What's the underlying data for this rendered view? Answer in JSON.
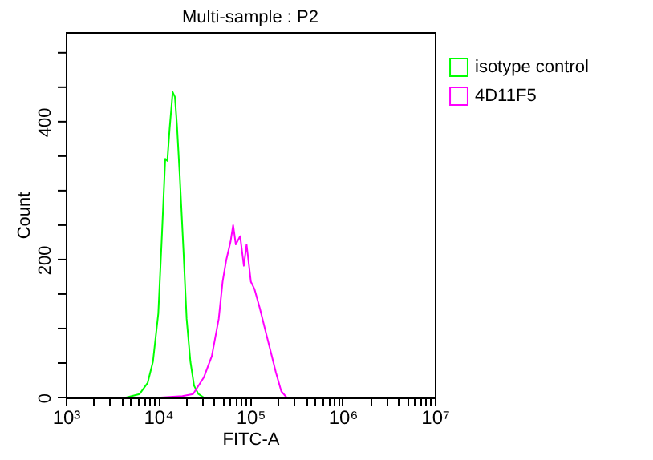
{
  "chart_data": {
    "type": "line",
    "title": "Multi-sample : P2",
    "xlabel": "FITC-A",
    "ylabel": "Count",
    "log": "x",
    "legend": "top right",
    "grid": false,
    "xlim": [
      1000,
      10000000
    ],
    "xticks": [
      {
        "value": 1000,
        "label": "10³"
      },
      {
        "value": 2000,
        "label": null
      },
      {
        "value": 3000,
        "label": null
      },
      {
        "value": 4000,
        "label": null
      },
      {
        "value": 5000,
        "label": null
      },
      {
        "value": 6000,
        "label": null
      },
      {
        "value": 7000,
        "label": null
      },
      {
        "value": 8000,
        "label": null
      },
      {
        "value": 9000,
        "label": null
      },
      {
        "value": 10000,
        "label": "10⁴"
      },
      {
        "value": 20000,
        "label": null
      },
      {
        "value": 30000,
        "label": null
      },
      {
        "value": 40000,
        "label": null
      },
      {
        "value": 50000,
        "label": null
      },
      {
        "value": 60000,
        "label": null
      },
      {
        "value": 70000,
        "label": null
      },
      {
        "value": 80000,
        "label": null
      },
      {
        "value": 90000,
        "label": null
      },
      {
        "value": 100000,
        "label": "10⁵"
      },
      {
        "value": 200000,
        "label": null
      },
      {
        "value": 300000,
        "label": null
      },
      {
        "value": 400000,
        "label": null
      },
      {
        "value": 500000,
        "label": null
      },
      {
        "value": 600000,
        "label": null
      },
      {
        "value": 700000,
        "label": null
      },
      {
        "value": 800000,
        "label": null
      },
      {
        "value": 900000,
        "label": null
      },
      {
        "value": 1000000,
        "label": "10⁶"
      },
      {
        "value": 2000000,
        "label": null
      },
      {
        "value": 3000000,
        "label": null
      },
      {
        "value": 4000000,
        "label": null
      },
      {
        "value": 5000000,
        "label": null
      },
      {
        "value": 6000000,
        "label": null
      },
      {
        "value": 7000000,
        "label": null
      },
      {
        "value": 8000000,
        "label": null
      },
      {
        "value": 9000000,
        "label": null
      },
      {
        "value": 10000000,
        "label": "10⁷"
      }
    ],
    "ylim": [
      0,
      530
    ],
    "yticks": [
      0,
      {
        "value": 50,
        "label": null
      },
      {
        "value": 100,
        "label": null
      },
      {
        "value": 150,
        "label": null
      },
      200,
      {
        "value": 250,
        "label": null
      },
      {
        "value": 300,
        "label": null
      },
      {
        "value": 350,
        "label": null
      },
      400,
      {
        "value": 450,
        "label": null
      },
      {
        "value": 500,
        "label": null
      }
    ],
    "series": [
      {
        "name": "isotype control",
        "color": "#00ff00",
        "x": [
          4519,
          6310,
          7709,
          8810,
          10070,
          11040,
          11970,
          12620,
          13340,
          14420,
          15240,
          16070,
          17180,
          18840,
          20420,
          22440,
          24600,
          27420,
          31330
        ],
        "values": [
          0,
          5,
          21,
          52,
          122,
          238,
          346,
          343,
          389,
          443,
          436,
          393,
          323,
          215,
          114,
          52,
          17,
          5,
          0
        ]
      },
      {
        "name": "4D11F5",
        "color": "#ff00ff",
        "x": [
          10720,
          18370,
          23990,
          31330,
          38280,
          45500,
          50120,
          54830,
          61090,
          65160,
          69660,
          77620,
          85110,
          91200,
          101400,
          111200,
          127100,
          145200,
          166000,
          189700,
          216800,
          247700
        ],
        "values": [
          0,
          2,
          5,
          29,
          60,
          114,
          168,
          199,
          226,
          250,
          222,
          234,
          191,
          222,
          168,
          157,
          129,
          98,
          67,
          36,
          9,
          0
        ]
      }
    ]
  }
}
